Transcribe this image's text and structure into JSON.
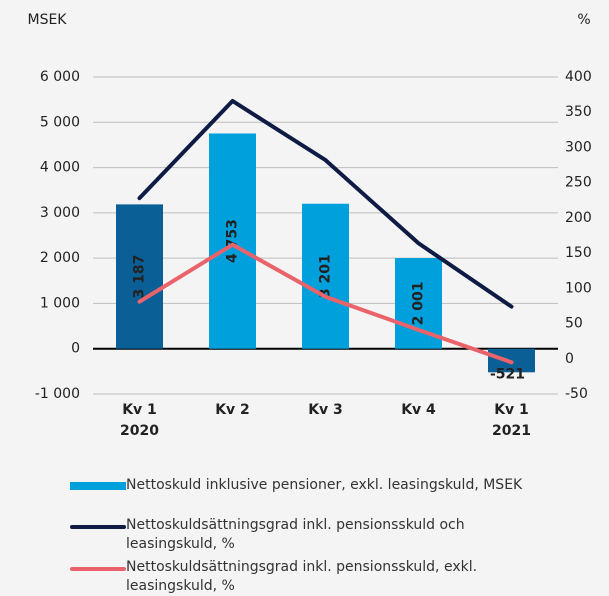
{
  "chart_data": {
    "type": "bar_line",
    "y_label": "MSEK",
    "y2_label": "%",
    "categories": [
      "Kv 1\n2020",
      "Kv 2",
      "Kv 3",
      "Kv 4",
      "Kv 1\n2021"
    ],
    "ylim": [
      -1000,
      6000
    ],
    "yticks": [
      {
        "value": -1000,
        "label": "-1 000"
      },
      0,
      {
        "value": 1000,
        "label": "1 000"
      },
      {
        "value": 2000,
        "label": "2 000"
      },
      {
        "value": 3000,
        "label": "3 000"
      },
      {
        "value": 4000,
        "label": "4 000"
      },
      {
        "value": 5000,
        "label": "5 000"
      },
      {
        "value": 6000,
        "label": "6 000"
      }
    ],
    "y2lim": [
      -50,
      400
    ],
    "y2ticks": [
      -50,
      0,
      50,
      100,
      150,
      200,
      250,
      300,
      350,
      400
    ],
    "grid": true,
    "series": [
      {
        "name": "Nettoskuld inklusive pensioner, exkl. leasingskuld, MSEK",
        "type": "bar",
        "color": "#00a0dc",
        "colors": [
          "#0a5f96",
          "#00a0dc",
          "#00a0dc",
          "#00a0dc",
          "#0a5f96"
        ],
        "values": [
          3187,
          4753,
          3201,
          2001,
          -521
        ],
        "value_labels": [
          "3 187",
          "4 753",
          "3 201",
          "2 001",
          "-521"
        ]
      },
      {
        "name": "Nettoskuldsättningsgrad inkl. pensionsskuld och leasingskuld, %",
        "type": "line",
        "axis": "y2",
        "color": "#0d1b45",
        "values": [
          228,
          366,
          282,
          164,
          74
        ]
      },
      {
        "name": "Nettoskuldsättningsgrad inkl. pensionsskuld, exkl. leasingskuld, %",
        "type": "line",
        "axis": "y2",
        "color": "#eb636a",
        "values": [
          81,
          162,
          88,
          41,
          -5
        ]
      }
    ]
  }
}
